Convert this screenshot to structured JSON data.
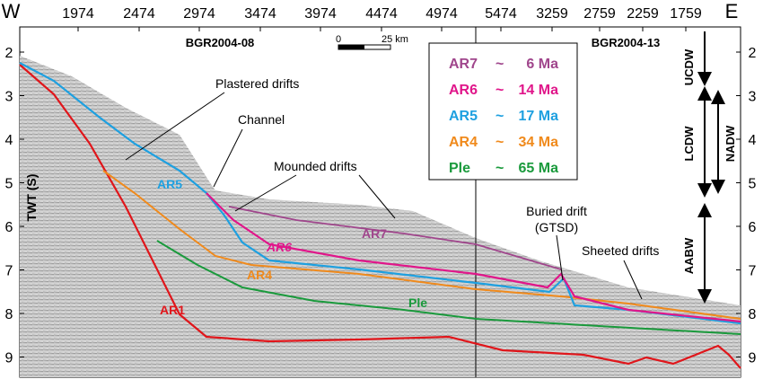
{
  "figure": {
    "west": "W",
    "east": "E",
    "top_ticks": [
      "1974",
      "2474",
      "2974",
      "3474",
      "3974",
      "4474",
      "4974",
      "5474",
      "3259",
      "2759",
      "2259",
      "1759"
    ],
    "y_ticks": [
      "2",
      "3",
      "4",
      "5",
      "6",
      "7",
      "8",
      "9"
    ],
    "y_axis_label": "TWT (S)",
    "profile_left": "BGR2004-08",
    "profile_right": "BGR2004-13",
    "scale": {
      "start": "0",
      "end": "25 km"
    },
    "legend": [
      {
        "name": "AR7",
        "approx": "~",
        "age": "6 Ma"
      },
      {
        "name": "AR6",
        "approx": "~",
        "age": "14 Ma"
      },
      {
        "name": "AR5",
        "approx": "~",
        "age": "17 Ma"
      },
      {
        "name": "AR4",
        "approx": "~",
        "age": "34 Ma"
      },
      {
        "name": "Ple",
        "approx": "~",
        "age": "65 Ma"
      }
    ],
    "annotations": {
      "plastered": "Plastered drifts",
      "channel": "Channel",
      "mounded": "Mounded drifts",
      "buried": "Buried drift",
      "buried_sub": "(GTSD)",
      "sheeted": "Sheeted drifts"
    },
    "horizon_labels": {
      "ar5": "AR5",
      "ar4": "AR4",
      "ar1": "AR1",
      "ar6": "AR6",
      "ar7": "AR7",
      "ple": "Ple"
    },
    "water_masses": {
      "ucdw": "UCDW",
      "lcdw": "LCDW",
      "nadw": "NADW",
      "aabw": "AABW"
    }
  }
}
